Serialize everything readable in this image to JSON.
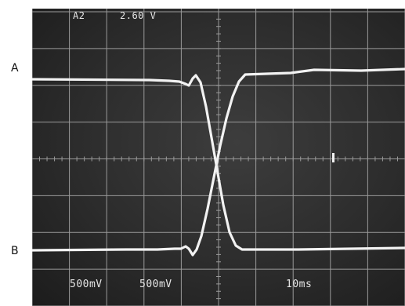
{
  "labels": {
    "a": "A",
    "b": "B"
  },
  "scope": {
    "trigger_channel": "A2",
    "trigger_level": "2.60 V",
    "ch1_scale": "500mV",
    "ch2_scale": "500mV",
    "timebase": "10ms"
  },
  "colors": {
    "screen": "#2c2c2c",
    "grid": "#9a9a9a",
    "trace": "#f2f2f2"
  }
}
